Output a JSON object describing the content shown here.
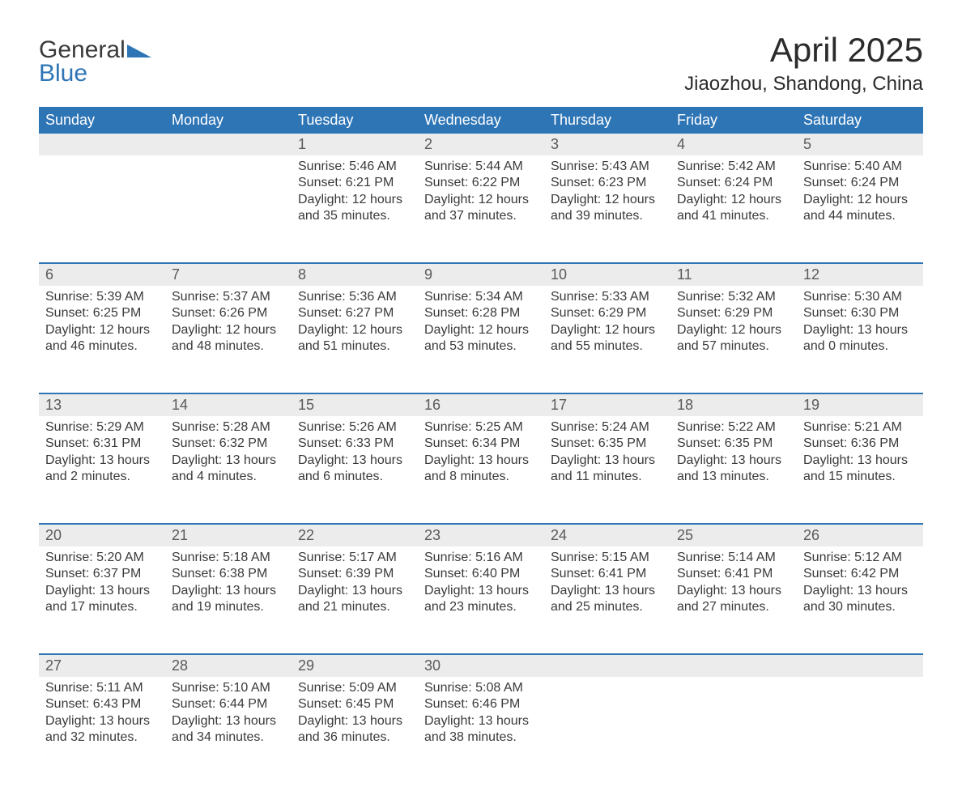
{
  "brand": {
    "line1": "General",
    "line2": "Blue"
  },
  "title": "April 2025",
  "location": "Jiaozhou, Shandong, China",
  "colors": {
    "header_bg": "#2e75b6",
    "header_fg": "#ffffff",
    "daynum_bg": "#ececec",
    "text": "#3a3a3a",
    "page_bg": "#ffffff"
  },
  "fonts": {
    "body_pt": 16,
    "title_pt": 42,
    "location_pt": 24,
    "th_pt": 18,
    "daynum_pt": 18
  },
  "dow": [
    "Sunday",
    "Monday",
    "Tuesday",
    "Wednesday",
    "Thursday",
    "Friday",
    "Saturday"
  ],
  "weeks": [
    [
      {
        "n": "",
        "sr": "",
        "ss": "",
        "dl": ""
      },
      {
        "n": "",
        "sr": "",
        "ss": "",
        "dl": ""
      },
      {
        "n": "1",
        "sr": "Sunrise: 5:46 AM",
        "ss": "Sunset: 6:21 PM",
        "dl": "Daylight: 12 hours and 35 minutes."
      },
      {
        "n": "2",
        "sr": "Sunrise: 5:44 AM",
        "ss": "Sunset: 6:22 PM",
        "dl": "Daylight: 12 hours and 37 minutes."
      },
      {
        "n": "3",
        "sr": "Sunrise: 5:43 AM",
        "ss": "Sunset: 6:23 PM",
        "dl": "Daylight: 12 hours and 39 minutes."
      },
      {
        "n": "4",
        "sr": "Sunrise: 5:42 AM",
        "ss": "Sunset: 6:24 PM",
        "dl": "Daylight: 12 hours and 41 minutes."
      },
      {
        "n": "5",
        "sr": "Sunrise: 5:40 AM",
        "ss": "Sunset: 6:24 PM",
        "dl": "Daylight: 12 hours and 44 minutes."
      }
    ],
    [
      {
        "n": "6",
        "sr": "Sunrise: 5:39 AM",
        "ss": "Sunset: 6:25 PM",
        "dl": "Daylight: 12 hours and 46 minutes."
      },
      {
        "n": "7",
        "sr": "Sunrise: 5:37 AM",
        "ss": "Sunset: 6:26 PM",
        "dl": "Daylight: 12 hours and 48 minutes."
      },
      {
        "n": "8",
        "sr": "Sunrise: 5:36 AM",
        "ss": "Sunset: 6:27 PM",
        "dl": "Daylight: 12 hours and 51 minutes."
      },
      {
        "n": "9",
        "sr": "Sunrise: 5:34 AM",
        "ss": "Sunset: 6:28 PM",
        "dl": "Daylight: 12 hours and 53 minutes."
      },
      {
        "n": "10",
        "sr": "Sunrise: 5:33 AM",
        "ss": "Sunset: 6:29 PM",
        "dl": "Daylight: 12 hours and 55 minutes."
      },
      {
        "n": "11",
        "sr": "Sunrise: 5:32 AM",
        "ss": "Sunset: 6:29 PM",
        "dl": "Daylight: 12 hours and 57 minutes."
      },
      {
        "n": "12",
        "sr": "Sunrise: 5:30 AM",
        "ss": "Sunset: 6:30 PM",
        "dl": "Daylight: 13 hours and 0 minutes."
      }
    ],
    [
      {
        "n": "13",
        "sr": "Sunrise: 5:29 AM",
        "ss": "Sunset: 6:31 PM",
        "dl": "Daylight: 13 hours and 2 minutes."
      },
      {
        "n": "14",
        "sr": "Sunrise: 5:28 AM",
        "ss": "Sunset: 6:32 PM",
        "dl": "Daylight: 13 hours and 4 minutes."
      },
      {
        "n": "15",
        "sr": "Sunrise: 5:26 AM",
        "ss": "Sunset: 6:33 PM",
        "dl": "Daylight: 13 hours and 6 minutes."
      },
      {
        "n": "16",
        "sr": "Sunrise: 5:25 AM",
        "ss": "Sunset: 6:34 PM",
        "dl": "Daylight: 13 hours and 8 minutes."
      },
      {
        "n": "17",
        "sr": "Sunrise: 5:24 AM",
        "ss": "Sunset: 6:35 PM",
        "dl": "Daylight: 13 hours and 11 minutes."
      },
      {
        "n": "18",
        "sr": "Sunrise: 5:22 AM",
        "ss": "Sunset: 6:35 PM",
        "dl": "Daylight: 13 hours and 13 minutes."
      },
      {
        "n": "19",
        "sr": "Sunrise: 5:21 AM",
        "ss": "Sunset: 6:36 PM",
        "dl": "Daylight: 13 hours and 15 minutes."
      }
    ],
    [
      {
        "n": "20",
        "sr": "Sunrise: 5:20 AM",
        "ss": "Sunset: 6:37 PM",
        "dl": "Daylight: 13 hours and 17 minutes."
      },
      {
        "n": "21",
        "sr": "Sunrise: 5:18 AM",
        "ss": "Sunset: 6:38 PM",
        "dl": "Daylight: 13 hours and 19 minutes."
      },
      {
        "n": "22",
        "sr": "Sunrise: 5:17 AM",
        "ss": "Sunset: 6:39 PM",
        "dl": "Daylight: 13 hours and 21 minutes."
      },
      {
        "n": "23",
        "sr": "Sunrise: 5:16 AM",
        "ss": "Sunset: 6:40 PM",
        "dl": "Daylight: 13 hours and 23 minutes."
      },
      {
        "n": "24",
        "sr": "Sunrise: 5:15 AM",
        "ss": "Sunset: 6:41 PM",
        "dl": "Daylight: 13 hours and 25 minutes."
      },
      {
        "n": "25",
        "sr": "Sunrise: 5:14 AM",
        "ss": "Sunset: 6:41 PM",
        "dl": "Daylight: 13 hours and 27 minutes."
      },
      {
        "n": "26",
        "sr": "Sunrise: 5:12 AM",
        "ss": "Sunset: 6:42 PM",
        "dl": "Daylight: 13 hours and 30 minutes."
      }
    ],
    [
      {
        "n": "27",
        "sr": "Sunrise: 5:11 AM",
        "ss": "Sunset: 6:43 PM",
        "dl": "Daylight: 13 hours and 32 minutes."
      },
      {
        "n": "28",
        "sr": "Sunrise: 5:10 AM",
        "ss": "Sunset: 6:44 PM",
        "dl": "Daylight: 13 hours and 34 minutes."
      },
      {
        "n": "29",
        "sr": "Sunrise: 5:09 AM",
        "ss": "Sunset: 6:45 PM",
        "dl": "Daylight: 13 hours and 36 minutes."
      },
      {
        "n": "30",
        "sr": "Sunrise: 5:08 AM",
        "ss": "Sunset: 6:46 PM",
        "dl": "Daylight: 13 hours and 38 minutes."
      },
      {
        "n": "",
        "sr": "",
        "ss": "",
        "dl": ""
      },
      {
        "n": "",
        "sr": "",
        "ss": "",
        "dl": ""
      },
      {
        "n": "",
        "sr": "",
        "ss": "",
        "dl": ""
      }
    ]
  ]
}
